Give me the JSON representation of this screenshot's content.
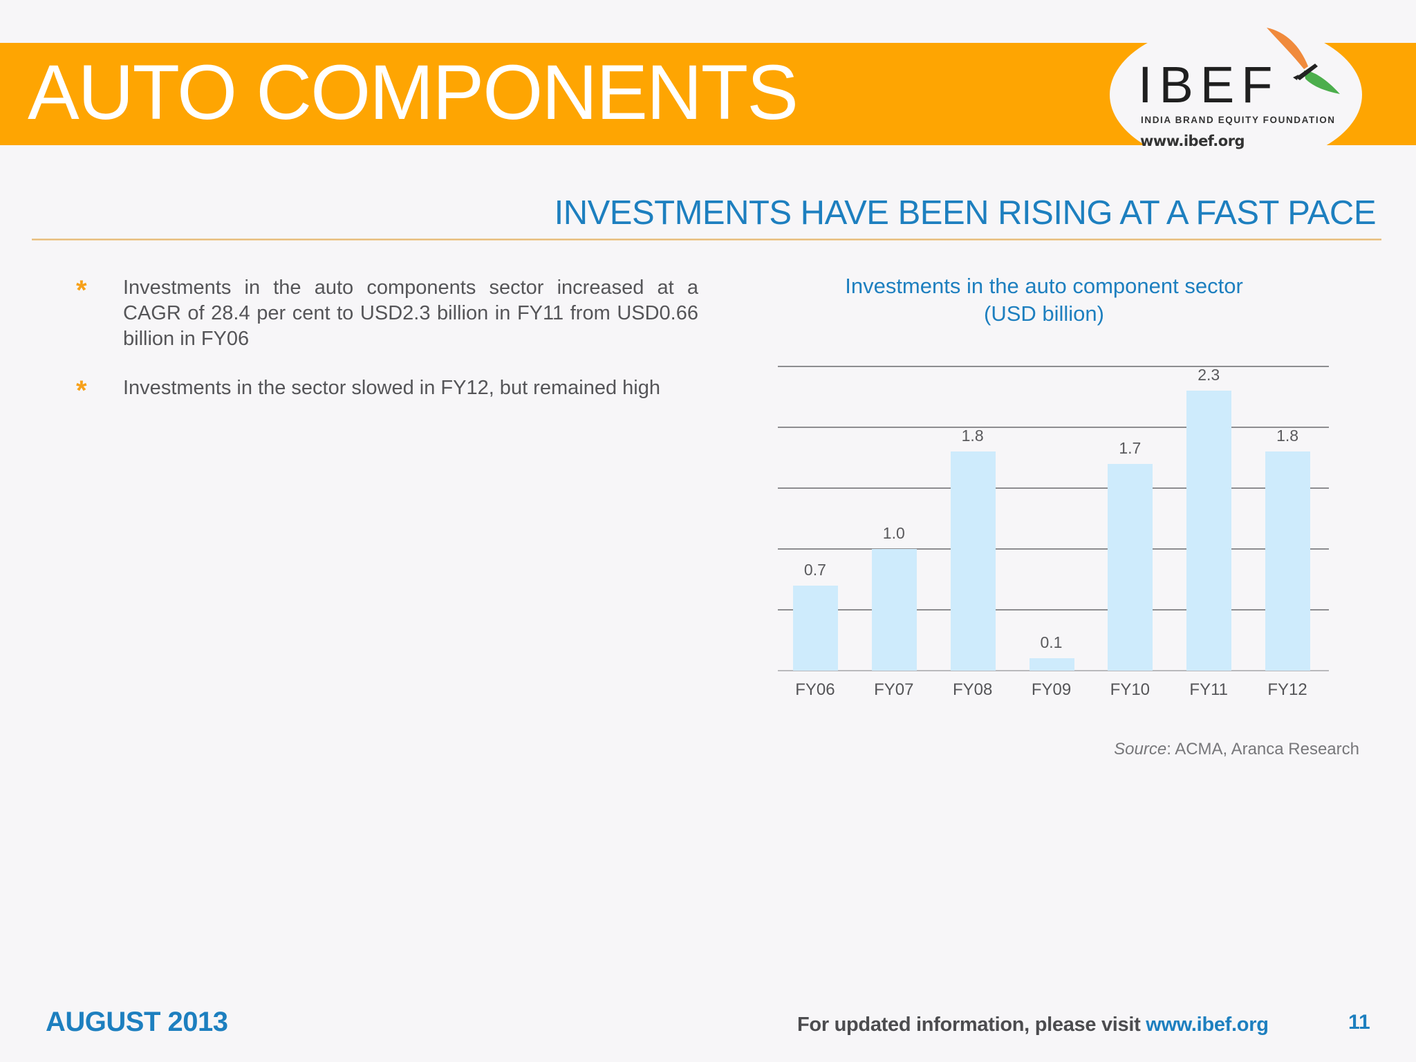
{
  "header": {
    "title": "AUTO COMPONENTS",
    "band_color": "#fea502"
  },
  "logo": {
    "wordmark": "IBEF",
    "tagline": "INDIA BRAND EQUITY FOUNDATION",
    "url": "www.ibef.org",
    "icon": "bird-icon",
    "colors": {
      "saffron": "#f08a3c",
      "green": "#4cae4c",
      "dark": "#222222"
    }
  },
  "section": {
    "title": "INVESTMENTS HAVE BEEN RISING AT A FAST PACE",
    "title_color": "#1d7fbf"
  },
  "bullets": [
    {
      "icon": "asterisk-bullet-icon",
      "symbol": "*",
      "text": "Investments in the auto components sector increased at a CAGR of 28.4 per cent to USD2.3 billion in FY11 from USD0.66 billion in FY06"
    },
    {
      "icon": "asterisk-bullet-icon",
      "symbol": "*",
      "text": "Investments in the sector slowed in FY12, but remained high"
    }
  ],
  "chart": {
    "title_line1": "Investments in the auto component sector",
    "title_line2": "(USD billion)",
    "source_label": "Source",
    "source_text": ": ACMA, Aranca Research",
    "value_labels": [
      "0.7",
      "1.0",
      "1.8",
      "0.1",
      "1.7",
      "2.3",
      "1.8"
    ],
    "categories": [
      "FY06",
      "FY07",
      "FY08",
      "FY09",
      "FY10",
      "FY11",
      "FY12"
    ]
  },
  "chart_data": {
    "type": "bar",
    "title": "Investments in the auto component sector (USD billion)",
    "categories": [
      "FY06",
      "FY07",
      "FY08",
      "FY09",
      "FY10",
      "FY11",
      "FY12"
    ],
    "values": [
      0.7,
      1.0,
      1.8,
      0.1,
      1.7,
      2.3,
      1.8
    ],
    "xlabel": "",
    "ylabel": "USD billion",
    "ylim": [
      0,
      2.5
    ],
    "gridlines": [
      0,
      0.5,
      1.0,
      1.5,
      2.0,
      2.5
    ],
    "grid": true,
    "y_axis_labels_shown": false,
    "data_labels": true,
    "bar_color": "#ceebfc",
    "legend": null,
    "source": "ACMA, Aranca Research"
  },
  "footer": {
    "date": "AUGUST 2013",
    "visit_text": "For updated information, please visit ",
    "visit_link": "www.ibef.org",
    "page_number": "11"
  }
}
